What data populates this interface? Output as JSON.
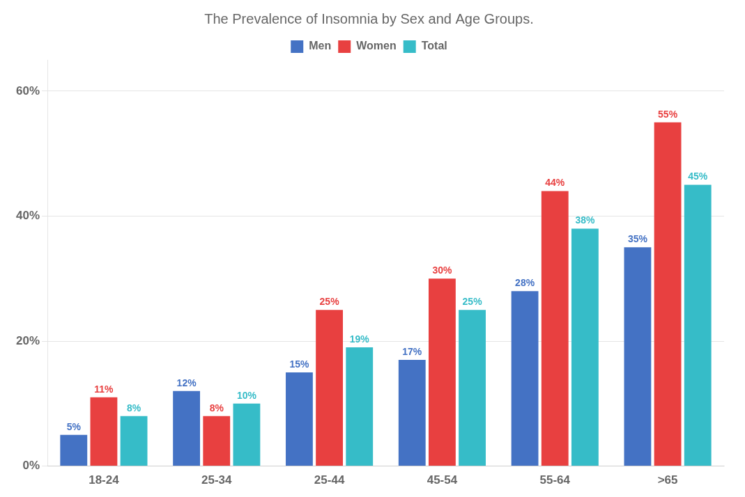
{
  "chart_data": {
    "type": "bar",
    "title": "The Prevalence of Insomnia by Sex and Age Groups.",
    "categories": [
      "18-24",
      "25-34",
      "25-44",
      "45-54",
      "55-64",
      ">65"
    ],
    "series": [
      {
        "name": "Men",
        "color": "#4472C4",
        "values": [
          5,
          12,
          15,
          17,
          28,
          35
        ],
        "value_labels": [
          "5%",
          "12%",
          "15%",
          "17%",
          "28%",
          "35%"
        ]
      },
      {
        "name": "Women",
        "color": "#E84040",
        "values": [
          11,
          8,
          25,
          30,
          44,
          55
        ],
        "value_labels": [
          "11%",
          "8%",
          "25%",
          "30%",
          "44%",
          "55%"
        ]
      },
      {
        "name": "Total",
        "color": "#36BCC8",
        "values": [
          8,
          10,
          19,
          25,
          38,
          45
        ],
        "value_labels": [
          "8%",
          "10%",
          "19%",
          "25%",
          "38%",
          "45%"
        ]
      }
    ],
    "ylim": [
      0,
      65
    ],
    "yticks": [
      {
        "value": 0,
        "label": "0%"
      },
      {
        "value": 20,
        "label": "20%"
      },
      {
        "value": 40,
        "label": "40%"
      },
      {
        "value": 60,
        "label": "60%"
      }
    ],
    "grid": true,
    "legend": "top",
    "data_labels": true
  }
}
